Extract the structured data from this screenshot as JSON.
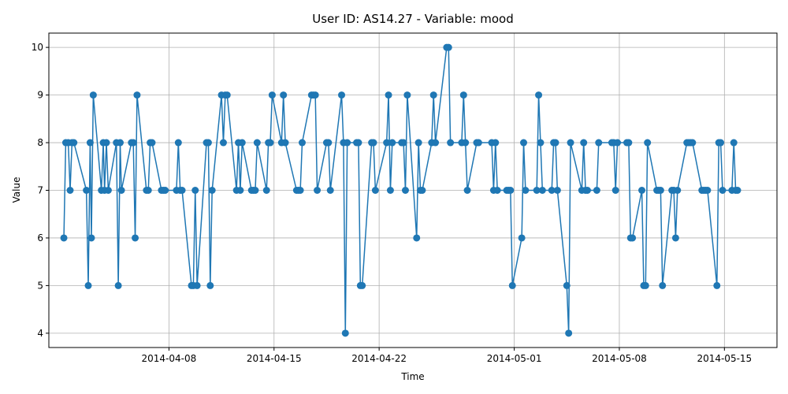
{
  "chart_data": {
    "type": "line",
    "title": "User ID: AS14.27 - Variable: mood",
    "xlabel": "Time",
    "ylabel": "Value",
    "x_axis_type": "date",
    "xlim": [
      "2014-03-31T00:00",
      "2014-05-18T12:00"
    ],
    "ylim": [
      3.7,
      10.3
    ],
    "x_ticks": [
      "2014-04-08",
      "2014-04-15",
      "2014-04-22",
      "2014-05-01",
      "2014-05-08",
      "2014-05-15"
    ],
    "y_ticks": [
      4,
      5,
      6,
      7,
      8,
      9,
      10
    ],
    "grid": true,
    "marker": "circle",
    "line_color": "#1f77b4",
    "series": [
      {
        "x": [
          "2014-04-01T00:00",
          "2014-04-01T03:00",
          "2014-04-01T07:00",
          "2014-04-01T10:00",
          "2014-04-01T13:00",
          "2014-04-01T16:00",
          "2014-04-02T12:00",
          "2014-04-02T15:00",
          "2014-04-02T18:00",
          "2014-04-02T20:00",
          "2014-04-02T23:00",
          "2014-04-03T12:00",
          "2014-04-03T15:00",
          "2014-04-03T17:00",
          "2014-04-03T20:00",
          "2014-04-03T23:00",
          "2014-04-04T12:00",
          "2014-04-04T15:00",
          "2014-04-04T18:00",
          "2014-04-04T20:00",
          "2014-04-05T12:00",
          "2014-04-05T15:00",
          "2014-04-05T18:00",
          "2014-04-05T21:00",
          "2014-04-06T12:00",
          "2014-04-06T15:00",
          "2014-04-06T18:00",
          "2014-04-06T21:00",
          "2014-04-07T12:00",
          "2014-04-07T15:00",
          "2014-04-07T18:00",
          "2014-04-08T12:00",
          "2014-04-08T15:00",
          "2014-04-08T18:00",
          "2014-04-08T21:00",
          "2014-04-09T12:00",
          "2014-04-09T15:00",
          "2014-04-09T18:00",
          "2014-04-09T21:00",
          "2014-04-10T12:00",
          "2014-04-10T15:00",
          "2014-04-10T18:00",
          "2014-04-10T21:00",
          "2014-04-11T12:00",
          "2014-04-11T15:00",
          "2014-04-11T18:00",
          "2014-04-11T21:00",
          "2014-04-12T12:00",
          "2014-04-12T15:00",
          "2014-04-12T18:00",
          "2014-04-12T21:00",
          "2014-04-13T12:00",
          "2014-04-13T15:00",
          "2014-04-13T18:00",
          "2014-04-13T21:00",
          "2014-04-14T12:00",
          "2014-04-14T15:00",
          "2014-04-14T18:00",
          "2014-04-14T21:00",
          "2014-04-15T12:00",
          "2014-04-15T15:00",
          "2014-04-15T18:00",
          "2014-04-16T12:00",
          "2014-04-16T15:00",
          "2014-04-16T18:00",
          "2014-04-16T21:00",
          "2014-04-17T12:00",
          "2014-04-17T15:00",
          "2014-04-17T18:00",
          "2014-04-17T21:00",
          "2014-04-18T12:00",
          "2014-04-18T15:00",
          "2014-04-18T18:00",
          "2014-04-19T12:00",
          "2014-04-19T15:00",
          "2014-04-19T18:00",
          "2014-04-19T21:00",
          "2014-04-20T12:00",
          "2014-04-20T15:00",
          "2014-04-20T18:00",
          "2014-04-20T21:00",
          "2014-04-21T12:00",
          "2014-04-21T15:00",
          "2014-04-21T18:00",
          "2014-04-22T12:00",
          "2014-04-22T15:00",
          "2014-04-22T18:00",
          "2014-04-22T21:00",
          "2014-04-23T12:00",
          "2014-04-23T15:00",
          "2014-04-23T18:00",
          "2014-04-23T21:00",
          "2014-04-24T12:00",
          "2014-04-24T15:00",
          "2014-04-24T18:00",
          "2014-04-24T21:00",
          "2014-04-25T12:00",
          "2014-04-25T15:00",
          "2014-04-25T18:00",
          "2014-04-26T12:00",
          "2014-04-26T15:00",
          "2014-04-26T18:00",
          "2014-04-27T12:00",
          "2014-04-27T15:00",
          "2014-04-27T18:00",
          "2014-04-27T21:00",
          "2014-04-28T12:00",
          "2014-04-28T15:00",
          "2014-04-29T12:00",
          "2014-04-29T15:00",
          "2014-04-29T18:00",
          "2014-04-29T21:00",
          "2014-04-30T12:00",
          "2014-04-30T15:00",
          "2014-04-30T18:00",
          "2014-04-30T21:00",
          "2014-05-01T12:00",
          "2014-05-01T15:00",
          "2014-05-01T18:00",
          "2014-05-02T12:00",
          "2014-05-02T15:00",
          "2014-05-02T18:00",
          "2014-05-02T21:00",
          "2014-05-03T12:00",
          "2014-05-03T15:00",
          "2014-05-03T18:00",
          "2014-05-03T21:00",
          "2014-05-04T12:00",
          "2014-05-04T15:00",
          "2014-05-04T18:00",
          "2014-05-05T12:00",
          "2014-05-05T15:00",
          "2014-05-05T18:00",
          "2014-05-05T21:00",
          "2014-05-06T12:00",
          "2014-05-06T15:00",
          "2014-05-07T12:00",
          "2014-05-07T15:00",
          "2014-05-07T18:00",
          "2014-05-07T21:00",
          "2014-05-08T12:00",
          "2014-05-08T15:00",
          "2014-05-08T18:00",
          "2014-05-08T21:00",
          "2014-05-09T12:00",
          "2014-05-09T15:00",
          "2014-05-09T18:00",
          "2014-05-09T21:00",
          "2014-05-10T12:00",
          "2014-05-10T15:00",
          "2014-05-10T18:00",
          "2014-05-10T21:00",
          "2014-05-11T12:00",
          "2014-05-11T15:00",
          "2014-05-11T18:00",
          "2014-05-11T21:00",
          "2014-05-12T12:00",
          "2014-05-12T15:00",
          "2014-05-12T18:00",
          "2014-05-12T21:00",
          "2014-05-13T12:00",
          "2014-05-13T15:00",
          "2014-05-13T18:00",
          "2014-05-13T21:00",
          "2014-05-14T12:00",
          "2014-05-14T15:00",
          "2014-05-14T18:00",
          "2014-05-14T21:00",
          "2014-05-15T12:00",
          "2014-05-15T15:00",
          "2014-05-15T18:00",
          "2014-05-15T21:00"
        ],
        "y": [
          6,
          8,
          8,
          7,
          8,
          8,
          7,
          5,
          8,
          6,
          9,
          7,
          8,
          7,
          8,
          7,
          8,
          5,
          8,
          7,
          8,
          8,
          6,
          9,
          7,
          7,
          8,
          8,
          7,
          7,
          7,
          7,
          8,
          7,
          7,
          5,
          5,
          7,
          5,
          8,
          8,
          5,
          7,
          9,
          8,
          9,
          9,
          7,
          8,
          7,
          8,
          7,
          7,
          7,
          8,
          7,
          8,
          8,
          9,
          8,
          9,
          8,
          7,
          7,
          7,
          8,
          9,
          9,
          9,
          7,
          8,
          8,
          7,
          9,
          8,
          4,
          8,
          8,
          8,
          5,
          5,
          8,
          8,
          7,
          8,
          9,
          7,
          8,
          8,
          8,
          7,
          9,
          6,
          8,
          7,
          7,
          8,
          9,
          8,
          10,
          10,
          8,
          8,
          9,
          8,
          7,
          8,
          8,
          8,
          7,
          8,
          7,
          7,
          7,
          7,
          5,
          6,
          8,
          7,
          7,
          9,
          8,
          7,
          7,
          8,
          8,
          7,
          5,
          4,
          8,
          7,
          8,
          7,
          7,
          7,
          8,
          8,
          8,
          7,
          8,
          8,
          8,
          6,
          6,
          7,
          5,
          5,
          8,
          7,
          7,
          7,
          5,
          7,
          7,
          6,
          7,
          8,
          8,
          8,
          8,
          7,
          7,
          7,
          7,
          5,
          8,
          8,
          7,
          7,
          8,
          7,
          7
        ]
      }
    ]
  }
}
